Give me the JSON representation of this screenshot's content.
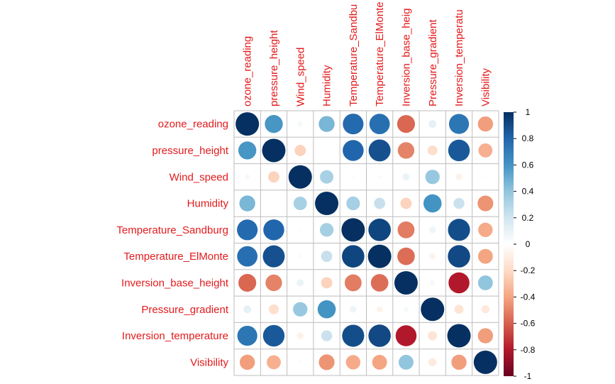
{
  "chart_data": {
    "type": "heatmap",
    "variables": [
      "ozone_reading",
      "pressure_height",
      "Wind_speed",
      "Humidity",
      "Temperature_Sandburg",
      "Temperature_ElMonte",
      "Inversion_base_height",
      "Pressure_gradient",
      "Inversion_temperature",
      "Visibility"
    ],
    "column_labels": [
      "ozone_reading",
      "pressure_height",
      "Wind_speed",
      "Humidity",
      "Temperature_Sandbu",
      "Temperature_ElMonte",
      "Inversion_base_heig",
      "Pressure_gradient",
      "Inversion_temperatu",
      "Visibility"
    ],
    "matrix": [
      [
        1.0,
        0.59,
        0.05,
        0.46,
        0.78,
        0.76,
        -0.58,
        0.11,
        0.73,
        -0.42
      ],
      [
        0.59,
        1.0,
        -0.23,
        0.01,
        0.8,
        0.88,
        -0.5,
        -0.18,
        0.85,
        -0.36
      ],
      [
        0.05,
        -0.23,
        1.0,
        0.33,
        0.02,
        -0.03,
        0.09,
        0.38,
        -0.08,
        0.02
      ],
      [
        0.46,
        0.01,
        0.33,
        1.0,
        0.34,
        0.23,
        -0.23,
        0.6,
        0.22,
        -0.45
      ],
      [
        0.78,
        0.8,
        0.02,
        0.34,
        1.0,
        0.92,
        -0.52,
        0.08,
        0.89,
        -0.38
      ],
      [
        0.76,
        0.88,
        -0.03,
        0.23,
        0.92,
        1.0,
        -0.56,
        -0.07,
        0.91,
        -0.4
      ],
      [
        -0.58,
        -0.5,
        0.09,
        -0.23,
        -0.52,
        -0.56,
        1.0,
        0.05,
        -0.8,
        0.4
      ],
      [
        0.11,
        -0.18,
        0.38,
        0.6,
        0.08,
        -0.07,
        0.05,
        1.0,
        -0.15,
        -0.12
      ],
      [
        0.73,
        0.85,
        -0.08,
        0.22,
        0.89,
        0.91,
        -0.8,
        -0.15,
        1.0,
        -0.42
      ],
      [
        -0.42,
        -0.36,
        0.02,
        -0.45,
        -0.38,
        -0.4,
        0.4,
        -0.12,
        -0.42,
        1.0
      ]
    ],
    "colorbar_ticks": [
      "1",
      "0.8",
      "0.6",
      "0.4",
      "0.2",
      "0",
      "-0.2",
      "-0.4",
      "-0.6",
      "-0.8",
      "-1"
    ],
    "value_range": [
      -1,
      1
    ],
    "colors": {
      "label": "#e31a1c",
      "grid": "#bdbdbd",
      "scale": [
        "#67001f",
        "#b2182b",
        "#d6604d",
        "#f4a582",
        "#fddbc7",
        "#ffffff",
        "#d1e5f0",
        "#92c5de",
        "#4393c3",
        "#2166ac",
        "#053061"
      ]
    }
  }
}
